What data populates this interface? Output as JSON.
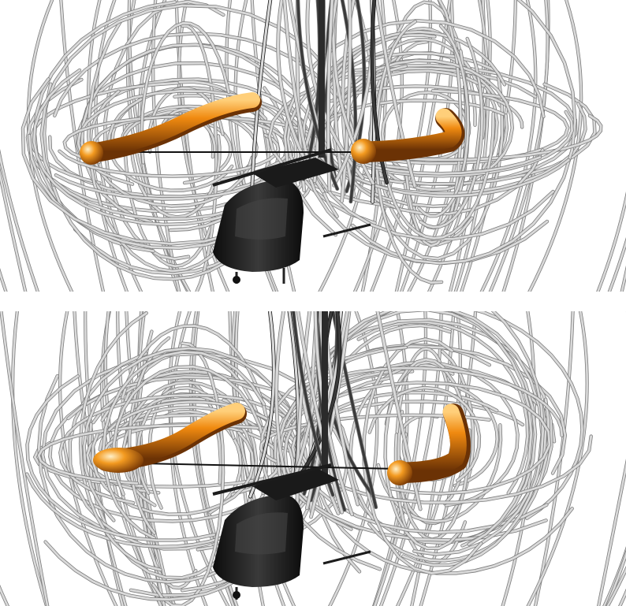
{
  "figure": {
    "panels": [
      {
        "id": "top",
        "subject": "helicopter-vortex-streamlines",
        "tube_color": "#f08a10",
        "tube_shadow": "#7a3a06",
        "streamline_color": "#d9d9d9",
        "streamline_dark": "#3a3a3a",
        "body_color": "#1e1e1e"
      },
      {
        "id": "bottom",
        "subject": "helicopter-vortex-streamlines",
        "tube_color": "#f08a10",
        "tube_shadow": "#7a3a06",
        "streamline_color": "#d9d9d9",
        "streamline_dark": "#3a3a3a",
        "body_color": "#1e1e1e"
      }
    ]
  }
}
